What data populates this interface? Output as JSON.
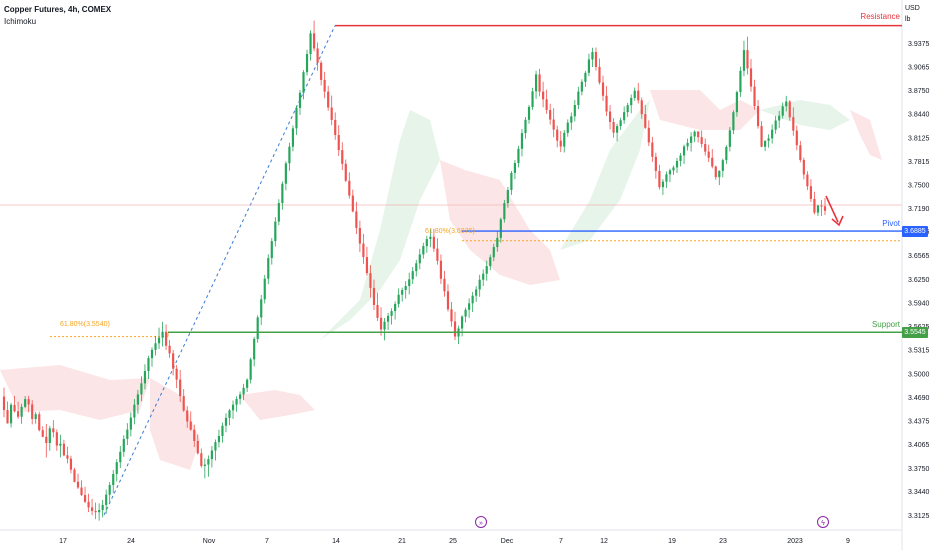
{
  "header": {
    "title": "Copper Futures, 4h, COMEX",
    "indicator": "Ichimoku"
  },
  "axis": {
    "currency": "USD",
    "unit": "lb"
  },
  "chart_data": {
    "type": "candlestick",
    "y_ticks": [
      "3.9375",
      "3.9065",
      "3.8750",
      "3.8440",
      "3.8125",
      "3.7815",
      "3.7500",
      "3.7190",
      "3.6885",
      "3.6565",
      "3.6250",
      "3.5940",
      "3.5625",
      "3.5315",
      "3.5000",
      "3.4690",
      "3.4375",
      "3.4065",
      "3.3750",
      "3.3440",
      "3.3125"
    ],
    "x_ticks": [
      "17",
      "24",
      "Nov",
      "7",
      "14",
      "21",
      "25",
      "Dec",
      "7",
      "12",
      "19",
      "23",
      "2023",
      "9"
    ],
    "levels": [
      {
        "name": "Resistance",
        "value": 3.9605,
        "color": "#e8343c"
      },
      {
        "name": "Pivot",
        "value": 3.6885,
        "tag": "3.6885",
        "color": "#2962ff"
      },
      {
        "name": "Support",
        "value": 3.5545,
        "tag": "3.5545",
        "color": "#43a047"
      }
    ],
    "fib_annotations": [
      {
        "label": "61.80%(3.5540)",
        "value": 3.554
      },
      {
        "label": "61.80%(3.6876)",
        "value": 3.6876
      }
    ],
    "candles": [
      [
        3.4693,
        3.4812,
        3.4419,
        3.4515
      ],
      [
        3.4515,
        3.4628,
        3.4335,
        3.4339
      ],
      [
        3.4339,
        3.4612,
        3.4284,
        3.4584
      ],
      [
        3.4584,
        3.4703,
        3.4483,
        3.4499
      ],
      [
        3.4499,
        3.4626,
        3.4399,
        3.4426
      ],
      [
        3.4426,
        3.4597,
        3.4333,
        3.4557
      ],
      [
        3.4557,
        3.4699,
        3.4539,
        3.466
      ],
      [
        3.466,
        3.4703,
        3.4484,
        3.4589
      ],
      [
        3.4589,
        3.4646,
        3.4325,
        3.4396
      ],
      [
        3.4396,
        3.449,
        3.4334,
        3.446
      ],
      [
        3.446,
        3.4493,
        3.4231,
        3.4248
      ],
      [
        3.4248,
        3.4301,
        3.4155,
        3.4161
      ],
      [
        3.4161,
        3.4331,
        3.3887,
        3.4078
      ],
      [
        3.4078,
        3.4305,
        3.3976,
        3.4273
      ],
      [
        3.4273,
        3.4381,
        3.4152,
        3.4221
      ],
      [
        3.4221,
        3.4258,
        3.3975,
        3.4044
      ],
      [
        3.4044,
        3.4188,
        3.3888,
        3.4068
      ],
      [
        3.4068,
        3.4119,
        3.3903,
        3.3915
      ],
      [
        3.3915,
        3.4028,
        3.3809,
        3.3871
      ],
      [
        3.3871,
        3.391,
        3.3677,
        3.3726
      ],
      [
        3.3726,
        3.3751,
        3.3557,
        3.3565
      ],
      [
        3.3565,
        3.3671,
        3.3469,
        3.3489
      ],
      [
        3.3489,
        3.3585,
        3.3376,
        3.3389
      ],
      [
        3.3389,
        3.3499,
        3.3282,
        3.3299
      ],
      [
        3.3299,
        3.3407,
        3.3165,
        3.3226
      ],
      [
        3.3226,
        3.3341,
        3.3121,
        3.3179
      ],
      [
        3.3179,
        3.329,
        3.307,
        3.3162
      ],
      [
        3.3162,
        3.3279,
        3.305,
        3.319
      ],
      [
        3.319,
        3.3325,
        3.3093,
        3.3259
      ],
      [
        3.3259,
        3.3462,
        3.314,
        3.3394
      ],
      [
        3.3394,
        3.3562,
        3.3295,
        3.3522
      ],
      [
        3.3522,
        3.3722,
        3.3414,
        3.3669
      ],
      [
        3.3669,
        3.3864,
        3.3569,
        3.3824
      ],
      [
        3.3824,
        3.4039,
        3.3747,
        3.3962
      ],
      [
        3.3962,
        3.4181,
        3.3896,
        3.4132
      ],
      [
        3.4132,
        3.4341,
        3.4051,
        3.4255
      ],
      [
        3.4255,
        3.4483,
        3.4166,
        3.4415
      ],
      [
        3.4415,
        3.466,
        3.4326,
        3.4586
      ],
      [
        3.4586,
        3.4782,
        3.4467,
        3.4722
      ],
      [
        3.4722,
        3.4962,
        3.4633,
        3.4868
      ],
      [
        3.4868,
        3.5121,
        3.4788,
        3.5031
      ],
      [
        3.5031,
        3.5233,
        3.4926,
        3.5202
      ],
      [
        3.5202,
        3.5346,
        3.5088,
        3.5312
      ],
      [
        3.5312,
        3.5497,
        3.5237,
        3.5399
      ],
      [
        3.5399,
        3.5606,
        3.5323,
        3.5473
      ],
      [
        3.5473,
        3.5683,
        3.5357,
        3.5552
      ],
      [
        3.5552,
        3.5647,
        3.5311,
        3.5366
      ],
      [
        3.5366,
        3.544,
        3.5206,
        3.5265
      ],
      [
        3.5265,
        3.5311,
        3.4973,
        3.5062
      ],
      [
        3.5062,
        3.5111,
        3.4806,
        3.4918
      ],
      [
        3.4918,
        3.5045,
        3.4621,
        3.4699
      ],
      [
        3.4699,
        3.4794,
        3.4489,
        3.4509
      ],
      [
        3.4509,
        3.4567,
        3.4281,
        3.4363
      ],
      [
        3.4363,
        3.4497,
        3.4241,
        3.4254
      ],
      [
        3.4254,
        3.4321,
        3.4025,
        3.4105
      ],
      [
        3.4105,
        3.4192,
        3.3927,
        3.3942
      ],
      [
        3.3942,
        3.4005,
        3.3752,
        3.3774
      ],
      [
        3.3774,
        3.3874,
        3.3611,
        3.3792
      ],
      [
        3.3792,
        3.3914,
        3.3632,
        3.3865
      ],
      [
        3.3865,
        3.4038,
        3.3755,
        3.3979
      ],
      [
        3.3979,
        3.4124,
        3.3847,
        3.409
      ],
      [
        3.409,
        3.4254,
        3.4021,
        3.4171
      ],
      [
        3.4171,
        3.4349,
        3.4084,
        3.4307
      ],
      [
        3.4307,
        3.4473,
        3.4221,
        3.4411
      ],
      [
        3.4411,
        3.4531,
        3.4313,
        3.4511
      ],
      [
        3.4511,
        3.4641,
        3.4398,
        3.4586
      ],
      [
        3.4586,
        3.4698,
        3.4493,
        3.4662
      ],
      [
        3.4662,
        3.476,
        3.4588,
        3.4721
      ],
      [
        3.4721,
        3.4862,
        3.4646,
        3.4809
      ],
      [
        3.4809,
        3.4934,
        3.4754,
        3.4917
      ],
      [
        3.4917,
        3.5208,
        3.4867,
        3.5186
      ],
      [
        3.5186,
        3.5482,
        3.5094,
        3.5456
      ],
      [
        3.5456,
        3.5769,
        3.5407,
        3.5741
      ],
      [
        3.5741,
        3.6039,
        3.5641,
        3.5981
      ],
      [
        3.5981,
        3.6304,
        3.5926,
        3.6254
      ],
      [
        3.6254,
        3.6577,
        3.6181,
        3.6527
      ],
      [
        3.6527,
        3.6792,
        3.6441,
        3.6752
      ],
      [
        3.6752,
        3.7069,
        3.6681,
        3.701
      ],
      [
        3.701,
        3.7306,
        3.6961,
        3.7255
      ],
      [
        3.7255,
        3.7542,
        3.7167,
        3.7512
      ],
      [
        3.7512,
        3.7809,
        3.7425,
        3.7782
      ],
      [
        3.7782,
        3.8054,
        3.7684,
        3.8002
      ],
      [
        3.8002,
        3.8284,
        3.7941,
        3.8245
      ],
      [
        3.8245,
        3.8545,
        3.8159,
        3.8515
      ],
      [
        3.8515,
        3.8752,
        3.8424,
        3.8716
      ],
      [
        3.8716,
        3.9016,
        3.8629,
        3.8989
      ],
      [
        3.8989,
        3.9286,
        3.8944,
        3.9229
      ],
      [
        3.9229,
        3.9544,
        3.9144,
        3.9502
      ],
      [
        3.9502,
        3.9672,
        3.9267,
        3.9303
      ],
      [
        3.9303,
        3.9382,
        3.9007,
        3.9113
      ],
      [
        3.9113,
        3.9143,
        3.8813,
        3.8886
      ],
      [
        3.8886,
        3.8994,
        3.8644,
        3.8731
      ],
      [
        3.8731,
        3.8808,
        3.8478,
        3.8521
      ],
      [
        3.8521,
        3.8679,
        3.8287,
        3.8356
      ],
      [
        3.8356,
        3.8455,
        3.8093,
        3.8157
      ],
      [
        3.8157,
        3.8287,
        3.7878,
        3.7957
      ],
      [
        3.7957,
        3.806,
        3.7693,
        3.7775
      ],
      [
        3.7775,
        3.7832,
        3.7533,
        3.7551
      ],
      [
        3.7551,
        3.7663,
        3.7314,
        3.7355
      ],
      [
        3.7355,
        3.7434,
        3.7133,
        3.7145
      ],
      [
        3.7145,
        3.7271,
        3.6845,
        3.6926
      ],
      [
        3.6926,
        3.7023,
        3.6606,
        3.6719
      ],
      [
        3.6719,
        3.6847,
        3.645,
        3.654
      ],
      [
        3.654,
        3.6677,
        3.6297,
        3.6328
      ],
      [
        3.6328,
        3.6434,
        3.6003,
        3.6132
      ],
      [
        3.6132,
        3.6241,
        3.5839,
        3.5906
      ],
      [
        3.5906,
        3.607,
        3.5694,
        3.5736
      ],
      [
        3.5736,
        3.5876,
        3.5499,
        3.5582
      ],
      [
        3.5582,
        3.5734,
        3.5437,
        3.5684
      ],
      [
        3.5684,
        3.5802,
        3.5574,
        3.5762
      ],
      [
        3.5762,
        3.5863,
        3.5648,
        3.5825
      ],
      [
        3.5825,
        3.5954,
        3.5713,
        3.592
      ],
      [
        3.592,
        3.6125,
        3.5872,
        3.6042
      ],
      [
        3.6042,
        3.6136,
        3.595,
        3.6104
      ],
      [
        3.6104,
        3.6222,
        3.5991,
        3.6157
      ],
      [
        3.6157,
        3.6333,
        3.6047,
        3.6246
      ],
      [
        3.6246,
        3.6409,
        3.6183,
        3.6354
      ],
      [
        3.6354,
        3.6503,
        3.6283,
        3.6458
      ],
      [
        3.6458,
        3.6649,
        3.6379,
        3.6575
      ],
      [
        3.6575,
        3.673,
        3.6521,
        3.6685
      ],
      [
        3.6685,
        3.6822,
        3.6597,
        3.6779
      ],
      [
        3.6779,
        3.6907,
        3.6671,
        3.6809
      ],
      [
        3.6809,
        3.6914,
        3.6607,
        3.6652
      ],
      [
        3.6652,
        3.6789,
        3.6441,
        3.6491
      ],
      [
        3.6491,
        3.6574,
        3.6184,
        3.6253
      ],
      [
        3.6253,
        3.6358,
        3.6015,
        3.6087
      ],
      [
        3.6087,
        3.6178,
        3.5819,
        3.5849
      ],
      [
        3.5849,
        3.5945,
        3.5617,
        3.5688
      ],
      [
        3.5688,
        3.5816,
        3.5442,
        3.5488
      ],
      [
        3.5488,
        3.5632,
        3.5387,
        3.5595
      ],
      [
        3.5595,
        3.5768,
        3.5491,
        3.5753
      ],
      [
        3.5753,
        3.5871,
        3.5675,
        3.5843
      ],
      [
        3.5843,
        3.5993,
        3.5736,
        3.5928
      ],
      [
        3.5928,
        3.6079,
        3.5814,
        3.6029
      ],
      [
        3.6029,
        3.6155,
        3.5946,
        3.6112
      ],
      [
        3.6112,
        3.6306,
        3.6014,
        3.624
      ],
      [
        3.624,
        3.6377,
        3.6158,
        3.632
      ],
      [
        3.632,
        3.6493,
        3.6227,
        3.6421
      ],
      [
        3.6421,
        3.6573,
        3.6366,
        3.6538
      ],
      [
        3.6538,
        3.6718,
        3.6486,
        3.6673
      ],
      [
        3.6673,
        3.6882,
        3.6611,
        3.6795
      ],
      [
        3.6795,
        3.7063,
        3.6732,
        3.7041
      ],
      [
        3.7041,
        3.7297,
        3.6997,
        3.7255
      ],
      [
        3.7255,
        3.7468,
        3.7194,
        3.7429
      ],
      [
        3.7429,
        3.7681,
        3.7364,
        3.7655
      ],
      [
        3.7655,
        3.7825,
        3.7573,
        3.7786
      ],
      [
        3.7786,
        3.8012,
        3.7728,
        3.7974
      ],
      [
        3.7974,
        3.8236,
        3.7874,
        3.8182
      ],
      [
        3.8182,
        3.8395,
        3.8108,
        3.8358
      ],
      [
        3.8358,
        3.8556,
        3.8308,
        3.8528
      ],
      [
        3.8528,
        3.8783,
        3.8488,
        3.8735
      ],
      [
        3.8735,
        3.9008,
        3.8637,
        3.8959
      ],
      [
        3.8959,
        3.9034,
        3.8669,
        3.8731
      ],
      [
        3.8731,
        3.8861,
        3.8523,
        3.8629
      ],
      [
        3.8629,
        3.8757,
        3.8437,
        3.8488
      ],
      [
        3.8488,
        3.8572,
        3.8293,
        3.8361
      ],
      [
        3.8361,
        3.8512,
        3.8127,
        3.8228
      ],
      [
        3.8228,
        3.8281,
        3.7992,
        3.8082
      ],
      [
        3.8082,
        3.8209,
        3.7931,
        3.8004
      ],
      [
        3.8004,
        3.8223,
        3.7925,
        3.8185
      ],
      [
        3.8185,
        3.8363,
        3.8134,
        3.832
      ],
      [
        3.832,
        3.8455,
        3.8224,
        3.8404
      ],
      [
        3.8404,
        3.862,
        3.8338,
        3.8554
      ],
      [
        3.8554,
        3.8795,
        3.8499,
        3.8732
      ],
      [
        3.8732,
        3.8895,
        3.8682,
        3.8861
      ],
      [
        3.8861,
        3.9006,
        3.8793,
        3.898
      ],
      [
        3.898,
        3.9234,
        3.8934,
        3.9157
      ],
      [
        3.9157,
        3.9312,
        3.9058,
        3.9256
      ],
      [
        3.9256,
        3.9315,
        3.9012,
        3.9058
      ],
      [
        3.9058,
        3.917,
        3.8826,
        3.8851
      ],
      [
        3.8851,
        3.8941,
        3.8608,
        3.8676
      ],
      [
        3.8676,
        3.8804,
        3.8406,
        3.8468
      ],
      [
        3.8468,
        3.8552,
        3.8232,
        3.8329
      ],
      [
        3.8329,
        3.8381,
        3.8121,
        3.8188
      ],
      [
        3.8188,
        3.8307,
        3.8073,
        3.8275
      ],
      [
        3.8275,
        3.8385,
        3.8224,
        3.8352
      ],
      [
        3.8352,
        3.8535,
        3.8305,
        3.846
      ],
      [
        3.846,
        3.8582,
        3.8396,
        3.8552
      ],
      [
        3.8552,
        3.8694,
        3.8445,
        3.8647
      ],
      [
        3.8647,
        3.8786,
        3.8612,
        3.8744
      ],
      [
        3.8744,
        3.8845,
        3.8574,
        3.8616
      ],
      [
        3.8616,
        3.8654,
        3.8372,
        3.8433
      ],
      [
        3.8433,
        3.8555,
        3.8239,
        3.8252
      ],
      [
        3.8252,
        3.835,
        3.801,
        3.8058
      ],
      [
        3.8058,
        3.8132,
        3.7801,
        3.7868
      ],
      [
        3.7868,
        3.7922,
        3.7579,
        3.7681
      ],
      [
        3.7681,
        3.7762,
        3.7435,
        3.7466
      ],
      [
        3.7466,
        3.7572,
        3.7363,
        3.7539
      ],
      [
        3.7539,
        3.7674,
        3.7455,
        3.7636
      ],
      [
        3.7636,
        3.7711,
        3.7533,
        3.7688
      ],
      [
        3.7688,
        3.7753,
        3.7628,
        3.7727
      ],
      [
        3.7727,
        3.7852,
        3.7653,
        3.7813
      ],
      [
        3.7813,
        3.7918,
        3.7742,
        3.7886
      ],
      [
        3.7886,
        3.803,
        3.7772,
        3.8006
      ],
      [
        3.8006,
        3.8108,
        3.7952,
        3.8053
      ],
      [
        3.8053,
        3.8194,
        3.7937,
        3.8137
      ],
      [
        3.8137,
        3.8219,
        3.8061,
        3.8201
      ],
      [
        3.8201,
        3.8211,
        3.8056,
        3.8128
      ],
      [
        3.8128,
        3.8217,
        3.7991,
        3.8038
      ],
      [
        3.8038,
        3.8111,
        3.7884,
        3.7936
      ],
      [
        3.7936,
        3.8026,
        3.7799,
        3.7855
      ],
      [
        3.7855,
        3.797,
        3.7715,
        3.774
      ],
      [
        3.774,
        3.7751,
        3.7563,
        3.7599
      ],
      [
        3.7599,
        3.7691,
        3.7493,
        3.7681
      ],
      [
        3.7681,
        3.7844,
        3.7596,
        3.7824
      ],
      [
        3.7824,
        3.8021,
        3.7772,
        3.8
      ],
      [
        3.8,
        3.8262,
        3.794,
        3.8219
      ],
      [
        3.8219,
        3.8484,
        3.8169,
        3.8459
      ],
      [
        3.8459,
        3.8745,
        3.8399,
        3.8725
      ],
      [
        3.8725,
        3.906,
        3.866,
        3.9007
      ],
      [
        3.9007,
        3.9405,
        3.8934,
        3.9281
      ],
      [
        3.9281,
        3.9459,
        3.8958,
        3.9039
      ],
      [
        3.9039,
        3.9163,
        3.8731,
        3.8798
      ],
      [
        3.8798,
        3.8889,
        3.8491,
        3.854
      ],
      [
        3.854,
        3.8621,
        3.8241,
        3.8275
      ],
      [
        3.8275,
        3.8341,
        3.7997,
        3.8001
      ],
      [
        3.8001,
        3.8086,
        3.7943,
        3.808
      ],
      [
        3.808,
        3.8166,
        3.799,
        3.8112
      ],
      [
        3.8112,
        3.8297,
        3.8044,
        3.8227
      ],
      [
        3.8227,
        3.8411,
        3.8173,
        3.8349
      ],
      [
        3.8349,
        3.8476,
        3.825,
        3.8412
      ],
      [
        3.8412,
        3.8588,
        3.8372,
        3.8537
      ],
      [
        3.8537,
        3.8675,
        3.8469,
        3.8601
      ],
      [
        3.8601,
        3.8618,
        3.8346,
        3.8392
      ],
      [
        3.8392,
        3.8523,
        3.8147,
        3.8215
      ],
      [
        3.8215,
        3.8281,
        3.7955,
        3.8021
      ],
      [
        3.8021,
        3.8078,
        3.7796,
        3.7826
      ],
      [
        3.7826,
        3.7856,
        3.7569,
        3.7633
      ],
      [
        3.7633,
        3.7677,
        3.7428,
        3.7478
      ],
      [
        3.7478,
        3.7571,
        3.7269,
        3.7311
      ],
      [
        3.7311,
        3.7405,
        3.7104,
        3.7129
      ],
      [
        3.7129,
        3.7231,
        3.7086,
        3.7222
      ],
      [
        3.7222,
        3.7298,
        3.7084,
        3.7213
      ],
      [
        3.7213,
        3.7323,
        3.7097,
        3.7153
      ]
    ]
  }
}
